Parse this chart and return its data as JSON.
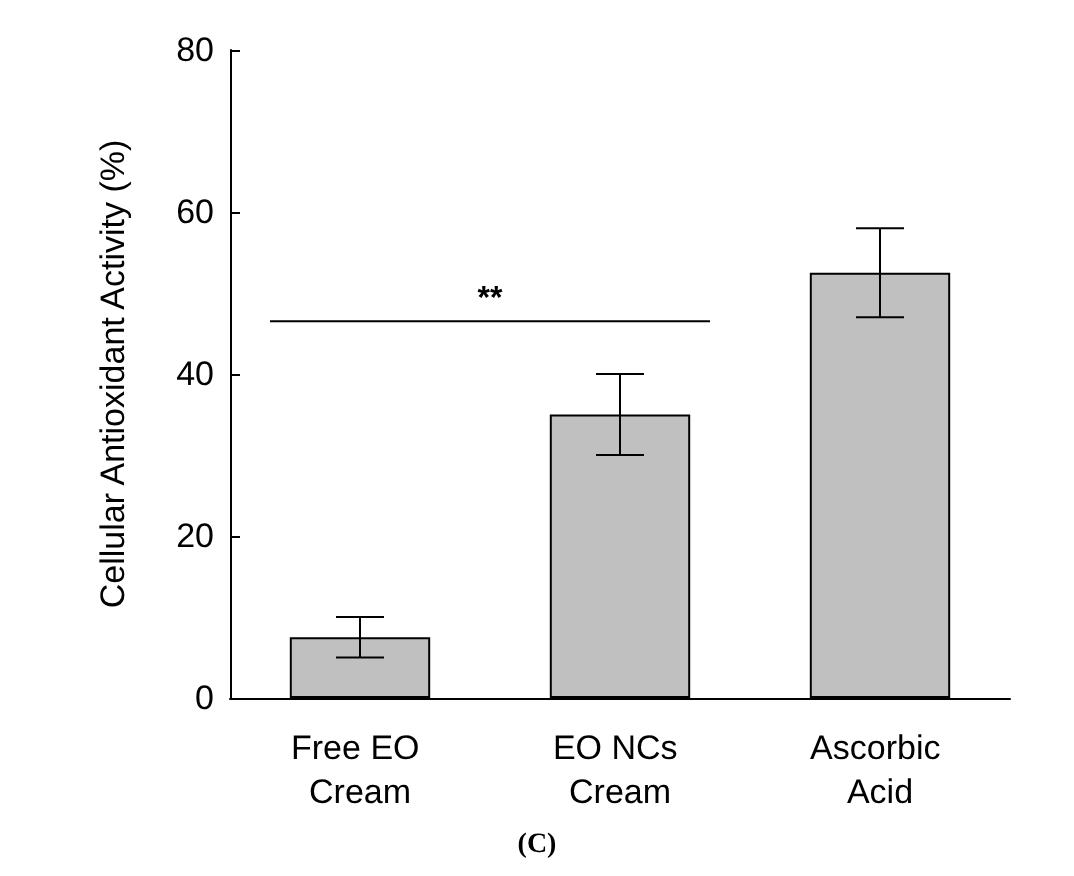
{
  "chart_data": {
    "type": "bar",
    "ylabel": "Cellular Antioxidant Activity (%)",
    "categories": [
      "Free EO Cream",
      "EO NCs Cream",
      "Ascorbic Acid"
    ],
    "values": [
      7.5,
      35,
      52.5
    ],
    "errors": [
      2.5,
      5,
      5.5
    ],
    "color": "#c0c0c0",
    "ylim": [
      0,
      80
    ],
    "yticks": [
      0,
      20,
      40,
      60,
      80
    ],
    "grid": false,
    "annotations": [
      "**",
      "(C)"
    ]
  }
}
